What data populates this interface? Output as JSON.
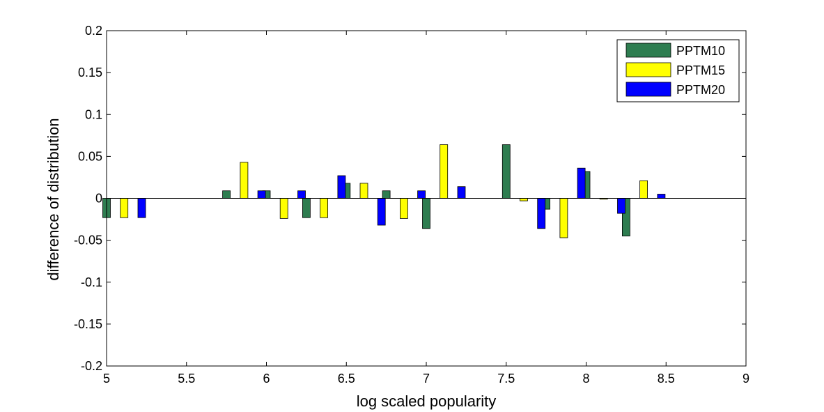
{
  "chart_data": {
    "type": "bar",
    "xlabel": "log scaled popularity",
    "ylabel": "difference of distribution",
    "xlim": [
      5,
      9
    ],
    "ylim": [
      -0.2,
      0.2
    ],
    "xticks": [
      "5",
      "5.5",
      "6",
      "6.5",
      "7",
      "7.5",
      "8",
      "8.5",
      "9"
    ],
    "xtick_values": [
      5,
      5.5,
      6,
      6.5,
      7,
      7.5,
      8,
      8.5,
      9
    ],
    "yticks": [
      "-0.2",
      "-0.15",
      "-0.1",
      "-0.05",
      "0",
      "0.05",
      "0.1",
      "0.15",
      "0.2"
    ],
    "ytick_values": [
      -0.2,
      -0.15,
      -0.1,
      -0.05,
      0,
      0.05,
      0.1,
      0.15,
      0.2
    ],
    "grid": false,
    "legend_position": "top-right",
    "categories": [
      5.11,
      5.86,
      6.11,
      6.36,
      6.61,
      6.86,
      7.11,
      7.61,
      7.86,
      8.11,
      8.36
    ],
    "series": [
      {
        "name": "PPTM10",
        "color": "#2e7d50",
        "values": [
          -0.023,
          0.009,
          0.009,
          -0.023,
          0.018,
          0.009,
          -0.036,
          0.064,
          -0.013,
          0.032,
          -0.045
        ]
      },
      {
        "name": "PPTM15",
        "color": "#ffff00",
        "values": [
          -0.023,
          0.043,
          -0.024,
          -0.023,
          0.018,
          -0.024,
          0.064,
          -0.003,
          -0.047,
          -0.001,
          0.021
        ]
      },
      {
        "name": "PPTM20",
        "color": "#0000ff",
        "values": [
          -0.023,
          0.009,
          0.009,
          0.027,
          -0.032,
          0.009,
          0.014,
          -0.036,
          0.036,
          -0.018,
          0.005
        ]
      }
    ]
  }
}
